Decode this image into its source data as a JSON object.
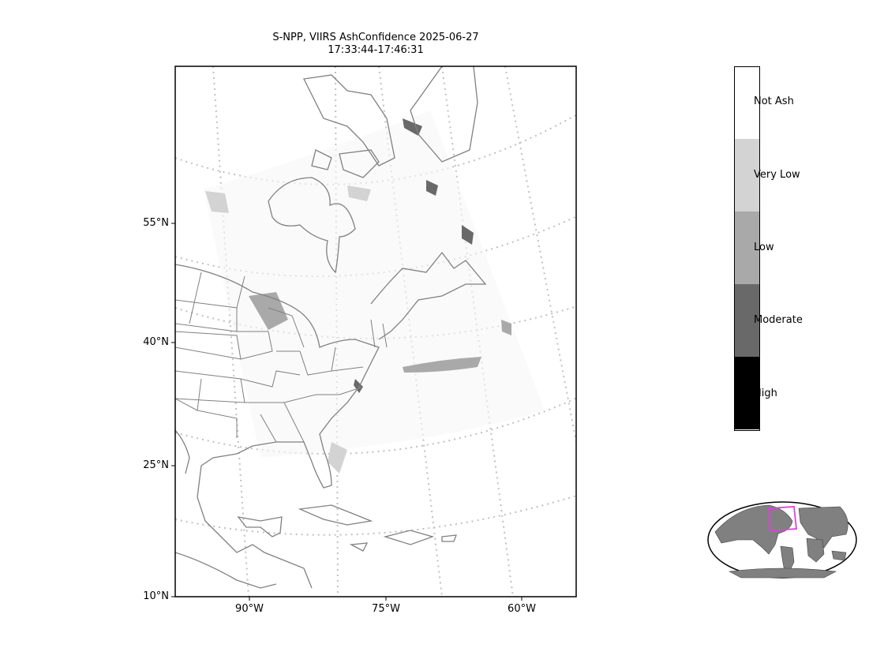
{
  "title": {
    "line1": "S-NPP, VIIRS AshConfidence 2025-06-27",
    "line2": "17:33:44-17:46:31"
  },
  "axes": {
    "lat_labels": [
      "55°N",
      "40°N",
      "25°N",
      "10°N"
    ],
    "lon_labels": [
      "90°W",
      "75°W",
      "60°W"
    ],
    "gridlines": "dotted"
  },
  "colorbar": {
    "categories": [
      {
        "label": "Not Ash",
        "color": "#ffffff"
      },
      {
        "label": "Very Low",
        "color": "#d3d3d3"
      },
      {
        "label": "Low",
        "color": "#a9a9a9"
      },
      {
        "label": "Moderate",
        "color": "#696969"
      },
      {
        "label": "High",
        "color": "#000000"
      }
    ]
  },
  "colors": {
    "coastline": "#808080",
    "gridline": "#c0c0c0",
    "inset_land": "#808080",
    "inset_extent": "#e040e0"
  },
  "inset": {
    "projection": "world overview",
    "highlight": "swath extent"
  }
}
